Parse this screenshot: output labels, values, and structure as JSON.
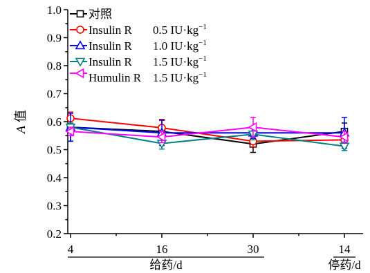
{
  "chart_data": {
    "type": "line",
    "categories": [
      "4",
      "16",
      "30",
      "14"
    ],
    "x_groups": [
      {
        "label": "给药/d",
        "size": 3
      },
      {
        "label": "停药/d",
        "size": 1
      }
    ],
    "ylabel_symbol": "A",
    "ylabel_text": "值",
    "ylim": [
      0.2,
      1.0
    ],
    "yticks": [
      "0.2",
      "0.3",
      "0.4",
      "0.5",
      "0.6",
      "0.7",
      "0.8",
      "0.9",
      "1.0"
    ],
    "grid": false,
    "legend_position": "top-left",
    "series": [
      {
        "name": "对照",
        "color": "#000000",
        "marker": "square",
        "values": [
          0.58,
          0.565,
          0.52,
          0.565
        ],
        "errors": [
          0.05,
          0.04,
          0.03,
          0.03
        ]
      },
      {
        "name": "Insulin R",
        "dose": "0.5 IU·kg",
        "dose_exp": "−1",
        "color": "#ff0000",
        "marker": "circle",
        "values": [
          0.612,
          0.578,
          0.53,
          0.535
        ],
        "errors": [
          0.022,
          0.03,
          0.02,
          0.02
        ]
      },
      {
        "name": "Insulin R",
        "dose": "1.0 IU·kg",
        "dose_exp": "−1",
        "color": "#0000ff",
        "marker": "triangle-up",
        "values": [
          0.58,
          0.56,
          0.56,
          0.56
        ],
        "errors": [
          0.05,
          0.045,
          0.02,
          0.055
        ]
      },
      {
        "name": "Insulin R",
        "dose": "1.5 IU·kg",
        "dose_exp": "−1",
        "color": "#008080",
        "marker": "triangle-down",
        "values": [
          0.58,
          0.522,
          0.555,
          0.512
        ],
        "errors": [
          0.015,
          0.02,
          0.02,
          0.015
        ]
      },
      {
        "name": "Humulin R",
        "dose": "1.5 IU·kg",
        "dose_exp": "−1",
        "color": "#ff00ff",
        "marker": "triangle-left",
        "values": [
          0.565,
          0.545,
          0.58,
          0.545
        ],
        "errors": [
          0.015,
          0.02,
          0.035,
          0.02
        ]
      }
    ]
  }
}
